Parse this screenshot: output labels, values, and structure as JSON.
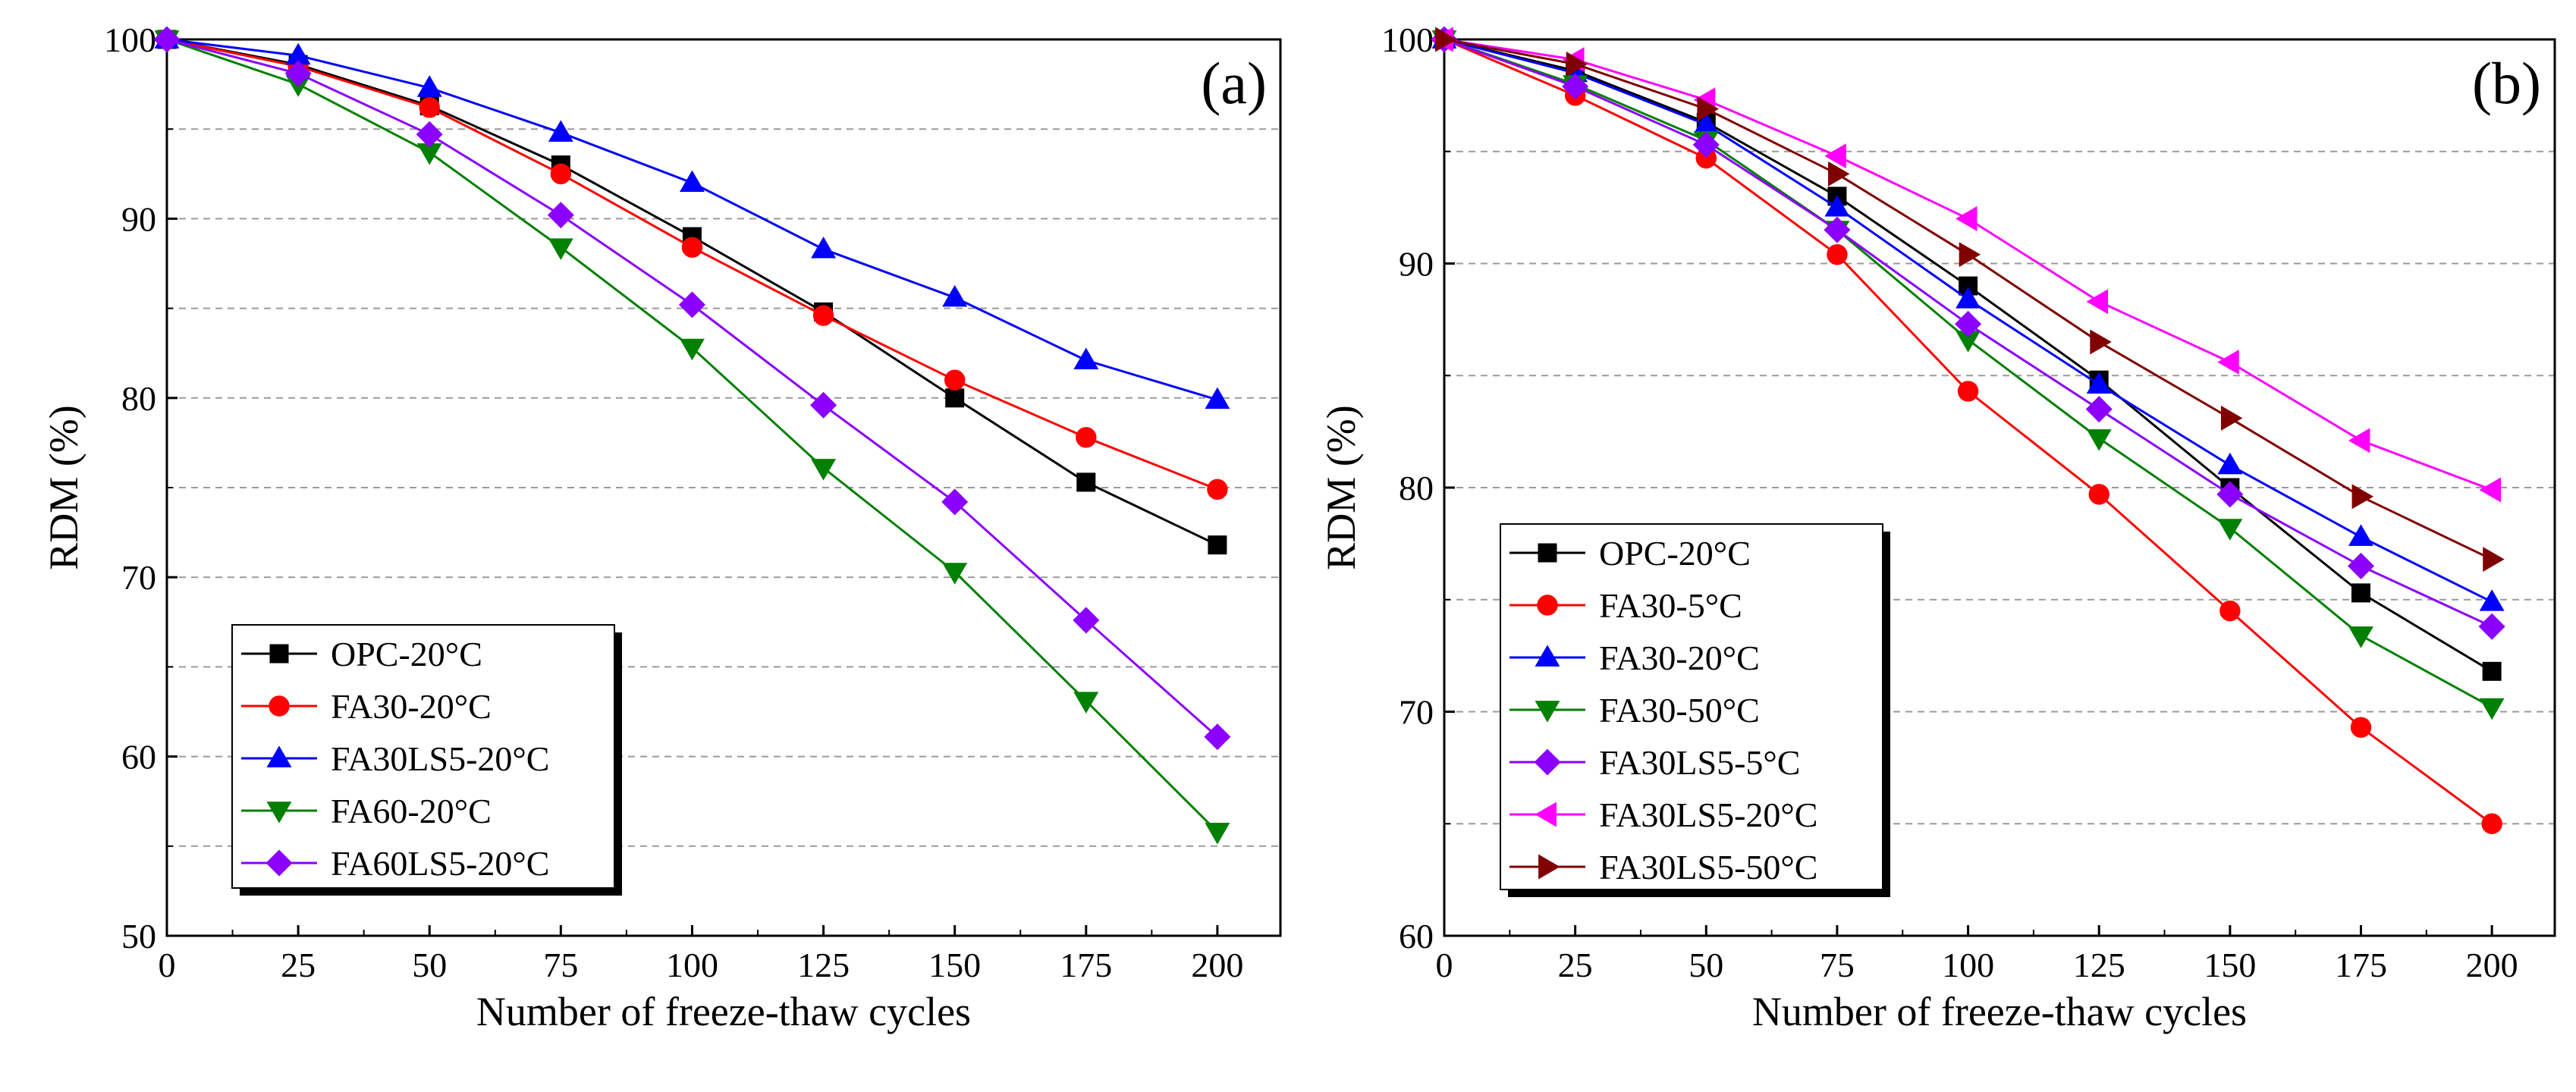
{
  "chart_data": [
    {
      "type": "line",
      "panel_label": "(a)",
      "xlabel": "Number of freeze-thaw cycles",
      "ylabel": "RDM (%)",
      "xlim": [
        0,
        212
      ],
      "ylim": [
        50,
        100
      ],
      "xticks": [
        0,
        25,
        50,
        75,
        100,
        125,
        150,
        175,
        200
      ],
      "yticks": [
        50,
        60,
        70,
        80,
        90,
        100
      ],
      "gridlines": [
        55,
        60,
        65,
        70,
        75,
        80,
        85,
        90,
        95
      ],
      "legend_position": "bottom-left",
      "x": [
        0,
        25,
        50,
        75,
        100,
        125,
        150,
        175,
        200
      ],
      "series": [
        {
          "name": "OPC-20°C",
          "color": "#000000",
          "marker": "square",
          "values": [
            100,
            98.6,
            96.3,
            93.0,
            89.0,
            84.8,
            80.0,
            75.3,
            71.8
          ]
        },
        {
          "name": "FA30-20°C",
          "color": "#ff0000",
          "marker": "circle",
          "values": [
            100,
            98.5,
            96.2,
            92.5,
            88.4,
            84.6,
            81.0,
            77.8,
            74.9
          ]
        },
        {
          "name": "FA30LS5-20°C",
          "color": "#0000ff",
          "marker": "triangle-up",
          "values": [
            100,
            99.1,
            97.3,
            94.8,
            92.0,
            88.3,
            85.6,
            82.1,
            79.9
          ]
        },
        {
          "name": "FA60-20°C",
          "color": "#008000",
          "marker": "triangle-down",
          "values": [
            100,
            97.5,
            93.7,
            88.4,
            82.8,
            76.1,
            70.3,
            63.1,
            55.8
          ]
        },
        {
          "name": "FA60LS5-20°C",
          "color": "#8b00ff",
          "marker": "diamond",
          "values": [
            100,
            98.1,
            94.7,
            90.2,
            85.2,
            79.6,
            74.2,
            67.6,
            61.1
          ]
        }
      ]
    },
    {
      "type": "line",
      "panel_label": "(b)",
      "xlabel": "Number of freeze-thaw cycles",
      "ylabel": "RDM (%)",
      "xlim": [
        0,
        212
      ],
      "ylim": [
        60,
        100
      ],
      "xticks": [
        0,
        25,
        50,
        75,
        100,
        125,
        150,
        175,
        200
      ],
      "yticks": [
        60,
        70,
        80,
        90,
        100
      ],
      "gridlines": [
        65,
        70,
        75,
        80,
        85,
        90,
        95
      ],
      "legend_position": "bottom-left",
      "x": [
        0,
        25,
        50,
        75,
        100,
        125,
        150,
        175,
        200
      ],
      "series": [
        {
          "name": "OPC-20°C",
          "color": "#000000",
          "marker": "square",
          "values": [
            100,
            98.6,
            96.3,
            93.0,
            89.0,
            84.8,
            80.0,
            75.3,
            71.8
          ]
        },
        {
          "name": "FA30-5°C",
          "color": "#ff0000",
          "marker": "circle",
          "values": [
            100,
            97.5,
            94.7,
            90.4,
            84.3,
            79.7,
            74.5,
            69.3,
            65.0
          ]
        },
        {
          "name": "FA30-20°C",
          "color": "#0000ff",
          "marker": "triangle-up",
          "values": [
            100,
            98.5,
            96.2,
            92.5,
            88.4,
            84.6,
            81.0,
            77.8,
            74.9
          ]
        },
        {
          "name": "FA30-50°C",
          "color": "#008000",
          "marker": "triangle-down",
          "values": [
            100,
            98.0,
            95.5,
            91.5,
            86.6,
            82.2,
            78.2,
            73.4,
            70.2
          ]
        },
        {
          "name": "FA30LS5-5°C",
          "color": "#8b00ff",
          "marker": "diamond",
          "values": [
            100,
            97.9,
            95.3,
            91.5,
            87.3,
            83.5,
            79.7,
            76.5,
            73.8
          ]
        },
        {
          "name": "FA30LS5-20°C",
          "color": "#ff00ff",
          "marker": "triangle-left",
          "values": [
            100,
            99.1,
            97.3,
            94.8,
            92.0,
            88.3,
            85.6,
            82.1,
            79.9
          ]
        },
        {
          "name": "FA30LS5-50°C",
          "color": "#800000",
          "marker": "triangle-right",
          "values": [
            100,
            98.9,
            96.9,
            94.0,
            90.4,
            86.5,
            83.1,
            79.6,
            76.8
          ]
        }
      ]
    }
  ]
}
